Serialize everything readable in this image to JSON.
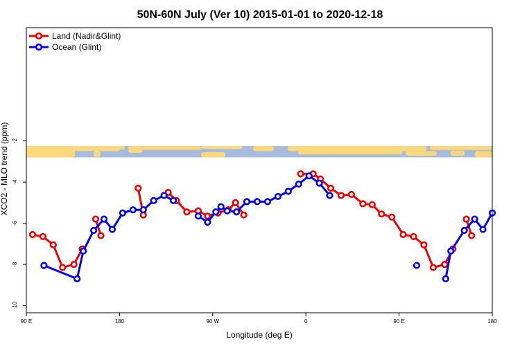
{
  "chart_data": {
    "type": "line",
    "title": "50N-60N July (Ver 10)   2015-01-01 to 2020-12-18",
    "xlabel": "Longitude (deg E)",
    "ylabel": "XCO2 - MLO trend (ppm)",
    "xlim": [
      90,
      540
    ],
    "ylim": [
      -10.35,
      3.5
    ],
    "x_ticks": [
      {
        "value": 90,
        "label": "90 E"
      },
      {
        "value": 180,
        "label": "180"
      },
      {
        "value": 270,
        "label": "90 W"
      },
      {
        "value": 360,
        "label": "0"
      },
      {
        "value": 450,
        "label": "90 E"
      },
      {
        "value": 540,
        "label": "180"
      }
    ],
    "y_ticks": [
      -10,
      -8,
      -6,
      -4,
      -2
    ],
    "grid": false,
    "legend": {
      "position": "top-left"
    },
    "map_strip": {
      "y_range": [
        -2.8,
        -2.25
      ],
      "ocean_color": "#a7bcdc",
      "land_color": "#fcd87c"
    },
    "series": [
      {
        "name": "Land (Nadir&Glint)",
        "color": "#ee0000",
        "segments": [
          [
            [
              96,
              -6.55
            ],
            [
              106,
              -6.65
            ],
            [
              116,
              -7.05
            ],
            [
              125,
              -8.15
            ],
            [
              136,
              -8.0
            ],
            [
              144,
              -7.25
            ]
          ],
          [
            [
              157,
              -5.8
            ],
            [
              162,
              -6.6
            ]
          ],
          [
            [
              198,
              -4.3
            ],
            [
              203,
              -5.6
            ]
          ],
          [
            [
              227,
              -4.5
            ],
            [
              235,
              -4.9
            ],
            [
              245,
              -5.45
            ],
            [
              256,
              -5.4
            ],
            [
              265,
              -5.65
            ],
            [
              275,
              -5.5
            ],
            [
              285,
              -5.35
            ],
            [
              292,
              -5.0
            ],
            [
              300,
              -5.6
            ]
          ],
          [
            [
              355,
              -3.6
            ],
            [
              367,
              -3.6
            ],
            [
              374,
              -3.85
            ],
            [
              384,
              -4.3
            ],
            [
              394,
              -4.65
            ],
            [
              404,
              -4.6
            ],
            [
              415,
              -5.05
            ],
            [
              424,
              -5.1
            ],
            [
              433,
              -5.55
            ],
            [
              443,
              -5.7
            ],
            [
              454,
              -6.55
            ],
            [
              464,
              -6.65
            ],
            [
              474,
              -7.05
            ],
            [
              483,
              -8.15
            ],
            [
              494,
              -8.0
            ],
            [
              502,
              -7.25
            ]
          ],
          [
            [
              515,
              -5.8
            ],
            [
              520,
              -6.6
            ]
          ]
        ]
      },
      {
        "name": "Ocean (Glint)",
        "color": "#0000ee",
        "segments": [
          [
            [
              107,
              -8.05
            ],
            [
              139,
              -8.7
            ],
            [
              145,
              -7.35
            ],
            [
              155,
              -6.35
            ],
            [
              165,
              -5.8
            ],
            [
              173,
              -6.3
            ],
            [
              183,
              -5.5
            ],
            [
              193,
              -5.35
            ],
            [
              203,
              -5.35
            ],
            [
              213,
              -4.9
            ],
            [
              223,
              -4.65
            ],
            [
              232,
              -4.9
            ]
          ],
          [
            [
              256,
              -5.65
            ],
            [
              265,
              -5.95
            ],
            [
              273,
              -5.45
            ],
            [
              278,
              -5.2
            ],
            [
              284,
              -5.4
            ],
            [
              293,
              -5.45
            ],
            [
              303,
              -4.95
            ],
            [
              313,
              -4.95
            ],
            [
              323,
              -4.95
            ],
            [
              333,
              -4.7
            ],
            [
              343,
              -4.45
            ],
            [
              353,
              -4.1
            ],
            [
              363,
              -3.7
            ],
            [
              373,
              -4.05
            ],
            [
              383,
              -4.65
            ]
          ],
          [
            [
              467,
              -8.05
            ]
          ],
          [
            [
              495,
              -8.7
            ],
            [
              500,
              -7.35
            ],
            [
              513,
              -6.35
            ],
            [
              523,
              -5.8
            ],
            [
              531,
              -6.3
            ],
            [
              540,
              -5.5
            ]
          ]
        ]
      }
    ]
  }
}
